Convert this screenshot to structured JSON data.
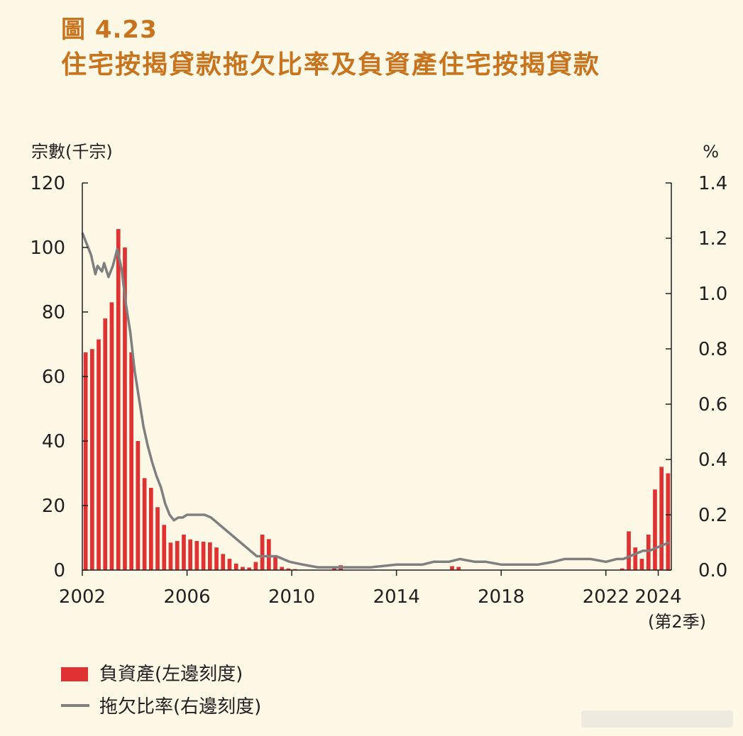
{
  "figure": {
    "label": "圖 4.23",
    "title": "住宅按揭貸款拖欠比率及負資產住宅按揭貸款"
  },
  "colors": {
    "title": "#c8741e",
    "bars": "#e03232",
    "line": "#7f7f7f",
    "axis": "#231f20",
    "background": "#fdf8e6"
  },
  "chart_data": {
    "type": "bar+line",
    "title": "住宅按揭貸款拖欠比率及負資產住宅按揭貸款",
    "left_axis": {
      "label": "宗數(千宗)",
      "ylim": [
        0,
        120
      ],
      "ticks": [
        "0",
        "20",
        "40",
        "60",
        "80",
        "100",
        "120"
      ]
    },
    "right_axis": {
      "label": "%",
      "ylim": [
        0,
        1.4
      ],
      "ticks": [
        "0.0",
        "0.2",
        "0.4",
        "0.6",
        "0.8",
        "1.0",
        "1.2",
        "1.4"
      ]
    },
    "x_axis": {
      "range": [
        2002,
        2024.5
      ],
      "ticks": [
        "2002",
        "2006",
        "2010",
        "2014",
        "2018",
        "2022",
        "2024"
      ],
      "last_tick_note": "(第2季)"
    },
    "grid": false,
    "legend": "bottom-left",
    "series": [
      {
        "name": "負資產(左邊刻度)",
        "kind": "bar",
        "axis": "left",
        "color": "#e03232",
        "points": [
          [
            "2002 Q1",
            67.5
          ],
          [
            "2002 Q2",
            68.5
          ],
          [
            "2002 Q3",
            71.5
          ],
          [
            "2002 Q4",
            78.0
          ],
          [
            "2003 Q1",
            83.0
          ],
          [
            "2003 Q2",
            105.7
          ],
          [
            "2003 Q3",
            100.0
          ],
          [
            "2003 Q4",
            67.5
          ],
          [
            "2004 Q1",
            40.0
          ],
          [
            "2004 Q2",
            28.5
          ],
          [
            "2004 Q3",
            25.5
          ],
          [
            "2004 Q4",
            19.5
          ],
          [
            "2005 Q1",
            14.0
          ],
          [
            "2005 Q2",
            8.5
          ],
          [
            "2005 Q3",
            9.0
          ],
          [
            "2005 Q4",
            11.0
          ],
          [
            "2006 Q1",
            9.5
          ],
          [
            "2006 Q2",
            9.0
          ],
          [
            "2006 Q3",
            8.8
          ],
          [
            "2006 Q4",
            8.6
          ],
          [
            "2007 Q1",
            7.0
          ],
          [
            "2007 Q2",
            5.0
          ],
          [
            "2007 Q3",
            3.5
          ],
          [
            "2007 Q4",
            2.0
          ],
          [
            "2008 Q1",
            1.0
          ],
          [
            "2008 Q2",
            0.8
          ],
          [
            "2008 Q3",
            2.5
          ],
          [
            "2008 Q4",
            11.0
          ],
          [
            "2009 Q1",
            9.6
          ],
          [
            "2009 Q2",
            4.0
          ],
          [
            "2009 Q3",
            1.0
          ],
          [
            "2009 Q4",
            0.5
          ],
          [
            "2010 Q1",
            0.3
          ],
          [
            "2011 Q3",
            1.0
          ],
          [
            "2011 Q4",
            1.5
          ],
          [
            "2016 Q1",
            1.2
          ],
          [
            "2016 Q2",
            1.0
          ],
          [
            "2022 Q3",
            0.5
          ],
          [
            "2022 Q4",
            12.0
          ],
          [
            "2023 Q1",
            7.0
          ],
          [
            "2023 Q2",
            3.5
          ],
          [
            "2023 Q3",
            11.0
          ],
          [
            "2023 Q4",
            25.0
          ],
          [
            "2024 Q1",
            32.0
          ],
          [
            "2024 Q2",
            30.0
          ]
        ]
      },
      {
        "name": "拖欠比率(右邊刻度)",
        "kind": "line",
        "axis": "right",
        "color": "#7f7f7f",
        "points": [
          [
            "2002-01",
            1.22
          ],
          [
            "2002-03",
            1.18
          ],
          [
            "2002-05",
            1.14
          ],
          [
            "2002-07",
            1.07
          ],
          [
            "2002-08",
            1.1
          ],
          [
            "2002-10",
            1.08
          ],
          [
            "2002-11",
            1.11
          ],
          [
            "2003-01",
            1.06
          ],
          [
            "2003-03",
            1.1
          ],
          [
            "2003-05",
            1.16
          ],
          [
            "2003-07",
            1.09
          ],
          [
            "2003-09",
            0.96
          ],
          [
            "2003-11",
            0.86
          ],
          [
            "2004-01",
            0.72
          ],
          [
            "2004-03",
            0.62
          ],
          [
            "2004-05",
            0.52
          ],
          [
            "2004-07",
            0.45
          ],
          [
            "2004-09",
            0.39
          ],
          [
            "2004-11",
            0.34
          ],
          [
            "2005-01",
            0.3
          ],
          [
            "2005-03",
            0.24
          ],
          [
            "2005-05",
            0.2
          ],
          [
            "2005-07",
            0.18
          ],
          [
            "2005-09",
            0.19
          ],
          [
            "2005-11",
            0.19
          ],
          [
            "2006-01",
            0.2
          ],
          [
            "2006-03",
            0.2
          ],
          [
            "2006-06",
            0.2
          ],
          [
            "2006-09",
            0.2
          ],
          [
            "2006-12",
            0.19
          ],
          [
            "2007-03",
            0.17
          ],
          [
            "2007-06",
            0.15
          ],
          [
            "2007-09",
            0.13
          ],
          [
            "2007-12",
            0.11
          ],
          [
            "2008-03",
            0.09
          ],
          [
            "2008-06",
            0.07
          ],
          [
            "2008-09",
            0.05
          ],
          [
            "2008-12",
            0.05
          ],
          [
            "2009-03",
            0.05
          ],
          [
            "2009-06",
            0.05
          ],
          [
            "2009-09",
            0.04
          ],
          [
            "2009-12",
            0.03
          ],
          [
            "2010-06",
            0.02
          ],
          [
            "2011-01",
            0.01
          ],
          [
            "2012-01",
            0.01
          ],
          [
            "2013-01",
            0.01
          ],
          [
            "2014-01",
            0.02
          ],
          [
            "2015-01",
            0.02
          ],
          [
            "2015-06",
            0.03
          ],
          [
            "2016-01",
            0.03
          ],
          [
            "2016-06",
            0.04
          ],
          [
            "2017-01",
            0.03
          ],
          [
            "2017-06",
            0.03
          ],
          [
            "2018-01",
            0.02
          ],
          [
            "2019-01",
            0.02
          ],
          [
            "2019-06",
            0.02
          ],
          [
            "2020-01",
            0.03
          ],
          [
            "2020-06",
            0.04
          ],
          [
            "2021-01",
            0.04
          ],
          [
            "2021-06",
            0.04
          ],
          [
            "2022-01",
            0.03
          ],
          [
            "2022-06",
            0.04
          ],
          [
            "2022-09",
            0.04
          ],
          [
            "2022-12",
            0.05
          ],
          [
            "2023-03",
            0.06
          ],
          [
            "2023-06",
            0.07
          ],
          [
            "2023-09",
            0.07
          ],
          [
            "2023-12",
            0.08
          ],
          [
            "2024-03",
            0.09
          ],
          [
            "2024-06",
            0.1
          ]
        ]
      }
    ],
    "legend_entries": [
      "負資產(左邊刻度)",
      "拖欠比率(右邊刻度)"
    ]
  }
}
